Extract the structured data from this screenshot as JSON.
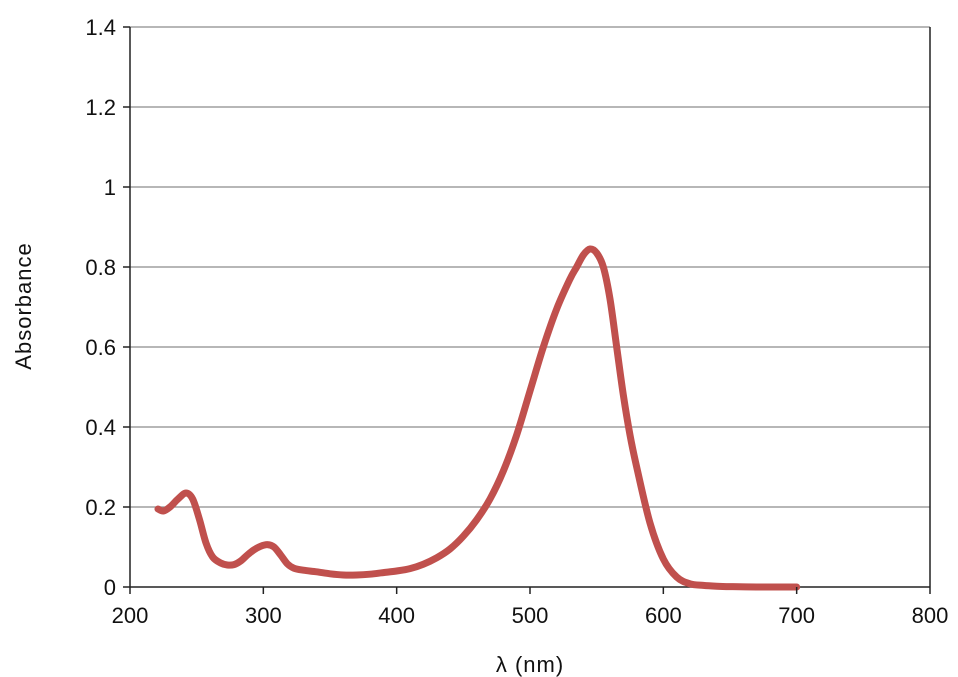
{
  "chart_data": {
    "type": "line",
    "title": "",
    "xlabel": "λ (nm)",
    "ylabel": "Absorbance",
    "xlim": [
      200,
      800
    ],
    "ylim": [
      0,
      1.4
    ],
    "x_ticks": [
      200,
      300,
      400,
      500,
      600,
      700,
      800
    ],
    "y_ticks": [
      0,
      0.2,
      0.4,
      0.6,
      0.8,
      1,
      1.2,
      1.4
    ],
    "x_tick_labels": [
      "200",
      "300",
      "400",
      "500",
      "600",
      "700",
      "800"
    ],
    "y_tick_labels": [
      "0",
      "0.2",
      "0.4",
      "0.6",
      "0.8",
      "1",
      "1.2",
      "1.4"
    ],
    "grid": "horizontal",
    "legend": "none",
    "series": [
      {
        "color": "#c0504d",
        "x": [
          221,
          225,
          230,
          236,
          242,
          247,
          252,
          257,
          262,
          268,
          273,
          278,
          283,
          288,
          293,
          298,
          303,
          308,
          313,
          318,
          323,
          330,
          340,
          350,
          360,
          370,
          380,
          390,
          400,
          410,
          420,
          430,
          440,
          450,
          460,
          470,
          480,
          490,
          500,
          510,
          520,
          530,
          535,
          540,
          545,
          550,
          555,
          560,
          565,
          570,
          575,
          580,
          590,
          600,
          610,
          620,
          630,
          640,
          650,
          670,
          700
        ],
        "y": [
          0.195,
          0.19,
          0.2,
          0.22,
          0.235,
          0.22,
          0.17,
          0.11,
          0.075,
          0.06,
          0.055,
          0.056,
          0.065,
          0.08,
          0.093,
          0.102,
          0.106,
          0.1,
          0.08,
          0.058,
          0.047,
          0.042,
          0.038,
          0.033,
          0.03,
          0.03,
          0.032,
          0.036,
          0.04,
          0.046,
          0.057,
          0.073,
          0.095,
          0.127,
          0.168,
          0.22,
          0.29,
          0.38,
          0.49,
          0.6,
          0.695,
          0.77,
          0.8,
          0.83,
          0.845,
          0.835,
          0.8,
          0.72,
          0.6,
          0.48,
          0.38,
          0.3,
          0.16,
          0.07,
          0.025,
          0.008,
          0.004,
          0.002,
          0.001,
          0.0,
          0.0
        ]
      }
    ]
  }
}
